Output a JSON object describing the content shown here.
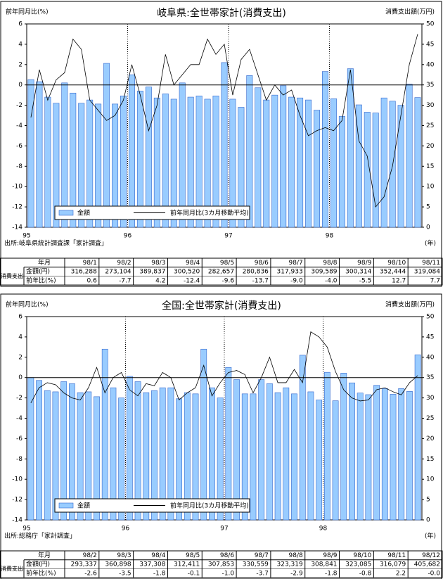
{
  "chart_data": [
    {
      "type": "combo",
      "title": "岐阜県:全世帯家計(消費支出)",
      "ylabel": "前年同月比(%)",
      "y2label": "消費支出額(万円)",
      "xlabel": "(年)",
      "source": "出所:岐阜県統計調査課「家計調査」",
      "categories": [
        "95",
        null,
        null,
        null,
        null,
        null,
        null,
        null,
        null,
        null,
        null,
        null,
        "96",
        null,
        null,
        null,
        null,
        null,
        null,
        null,
        null,
        null,
        null,
        null,
        "97",
        null,
        null,
        null,
        null,
        null,
        null,
        null,
        null,
        null,
        null,
        null,
        "98",
        null,
        null,
        null,
        null,
        null,
        null,
        null,
        null,
        null,
        null
      ],
      "series": [
        {
          "name": "金額",
          "type": "bar",
          "axis": "y2",
          "color": "#99ccff",
          "values": [
            36.3,
            35.8,
            32,
            30.5,
            35.5,
            33,
            30.5,
            31.3,
            30.3,
            40.3,
            30.3,
            32.3,
            37.5,
            33.5,
            34.5,
            31.8,
            32.8,
            31.5,
            35.5,
            32,
            32.3,
            31.5,
            32.3,
            40.5,
            31.5,
            29.5,
            37.3,
            34.3,
            31.3,
            32.5,
            34.8,
            32,
            31.8,
            31.3,
            28.8,
            38.3,
            31.6,
            27.3,
            39,
            30.1,
            28.3,
            28.1,
            31.8,
            31,
            30,
            35.2,
            31.9
          ]
        },
        {
          "name": "前年同月比(3カ月移動平均)",
          "type": "line",
          "color": "#000000",
          "values": [
            -3.2,
            1.5,
            -1.5,
            0.5,
            1.2,
            4.5,
            3.5,
            -1.5,
            -2.5,
            -3.5,
            -3,
            -1.5,
            2,
            -1,
            -4.5,
            -2,
            3,
            0,
            1,
            2,
            2,
            4.5,
            3,
            4,
            -1,
            2.5,
            3.5,
            1,
            -1.5,
            0,
            -1,
            -0.5,
            -3,
            -5,
            -4.5,
            -4.2,
            -4.5,
            -3.5,
            1.5,
            -5.5,
            -7,
            -12,
            -11,
            -8,
            -3,
            2,
            5
          ]
        }
      ],
      "ylim": [
        -14,
        6
      ],
      "yticks": [
        -14,
        -12,
        -10,
        -8,
        -6,
        -4,
        -2,
        0,
        2,
        4,
        6
      ],
      "y2lim": [
        0,
        50
      ],
      "y2ticks": [
        0,
        5,
        10,
        15,
        20,
        25,
        30,
        35,
        40,
        45,
        50
      ],
      "table": {
        "header": "年月",
        "row_label": "消費支出",
        "months": [
          "98/1",
          "98/2",
          "98/3",
          "98/4",
          "98/5",
          "98/6",
          "98/7",
          "98/8",
          "98/9",
          "98/10",
          "98/11"
        ],
        "rows": [
          {
            "label": "金額(円)",
            "values": [
              "316,288",
              "273,104",
              "389,837",
              "300,520",
              "282,657",
              "280,836",
              "317,933",
              "309,589",
              "300,314",
              "352,444",
              "319,084"
            ]
          },
          {
            "label": "前年比(%)",
            "values": [
              "0.6",
              "-7.7",
              "4.2",
              "-12.4",
              "-9.6",
              "-13.7",
              "-9.0",
              "-4.0",
              "-5.5",
              "12.7",
              "7.7"
            ]
          }
        ]
      }
    },
    {
      "type": "combo",
      "title": "全国:全世帯家計(消費支出)",
      "ylabel": "前年同月比(%)",
      "y2label": "消費支出額(万円)",
      "xlabel": "(年)",
      "source": "出所:総務庁「家計調査」",
      "categories": [
        "95",
        null,
        null,
        null,
        null,
        null,
        null,
        null,
        null,
        null,
        null,
        null,
        "96",
        null,
        null,
        null,
        null,
        null,
        null,
        null,
        null,
        null,
        null,
        null,
        "97",
        null,
        null,
        null,
        null,
        null,
        null,
        null,
        null,
        null,
        null,
        null,
        "98",
        null,
        null,
        null,
        null,
        null,
        null,
        null,
        null,
        null,
        null,
        null
      ],
      "series": [
        {
          "name": "金額",
          "type": "bar",
          "axis": "y2",
          "color": "#99ccff",
          "values": [
            35,
            34.3,
            31.8,
            31.5,
            34,
            33.5,
            31.3,
            31.5,
            30.3,
            42,
            32.5,
            30,
            35.3,
            34,
            31.3,
            31.8,
            32.5,
            32.5,
            29.8,
            31.3,
            31,
            42,
            32.5,
            30,
            37.5,
            34.5,
            31,
            31,
            34.5,
            33.5,
            31.3,
            32.5,
            31,
            40.5,
            31.5,
            29.5,
            36.3,
            29.3,
            36.1,
            33.7,
            31.2,
            30.8,
            33.1,
            32.3,
            30.9,
            32.3,
            31.6,
            40.6
          ]
        },
        {
          "name": "前年同月比(3カ月移動平均)",
          "type": "line",
          "color": "#000000",
          "values": [
            -2.5,
            -1,
            -0.5,
            -0.7,
            -1.5,
            -2,
            -2.2,
            -1,
            1,
            -1.5,
            0,
            0.5,
            -1.2,
            -1.8,
            -0.6,
            -0.8,
            0.5,
            0,
            -2.2,
            -1.5,
            -1,
            1.2,
            -1.8,
            -0.5,
            0.5,
            0.7,
            0.3,
            -1.5,
            0,
            2,
            -0.5,
            -0.5,
            0.8,
            -0.5,
            4.5,
            4,
            3,
            0.6,
            -1.2,
            -2,
            -2.3,
            -2.2,
            -1.2,
            -1,
            -1.4,
            -1.7,
            -0.5,
            0.2
          ]
        }
      ],
      "ylim": [
        -14,
        6
      ],
      "yticks": [
        -14,
        -12,
        -10,
        -8,
        -6,
        -4,
        -2,
        0,
        2,
        4,
        6
      ],
      "y2lim": [
        0,
        50
      ],
      "y2ticks": [
        0,
        5,
        10,
        15,
        20,
        25,
        30,
        35,
        40,
        45,
        50
      ],
      "table": {
        "header": "年月",
        "row_label": "消費支出",
        "months": [
          "98/2",
          "98/3",
          "98/4",
          "98/5",
          "98/6",
          "98/7",
          "98/8",
          "98/9",
          "98/10",
          "98/11",
          "98/12"
        ],
        "rows": [
          {
            "label": "金額(円)",
            "values": [
              "293,337",
              "360,898",
              "337,308",
              "312,411",
              "307,853",
              "330,559",
              "323,319",
              "308,841",
              "323,085",
              "316,079",
              "405,682"
            ]
          },
          {
            "label": "前年比(%)",
            "values": [
              "-2.6",
              "-3.5",
              "-1.8",
              "-0.1",
              "-1.0",
              "-3.7",
              "-2.9",
              "-1.8",
              "-0.8",
              "2.2",
              "-0.0"
            ]
          }
        ]
      }
    }
  ]
}
